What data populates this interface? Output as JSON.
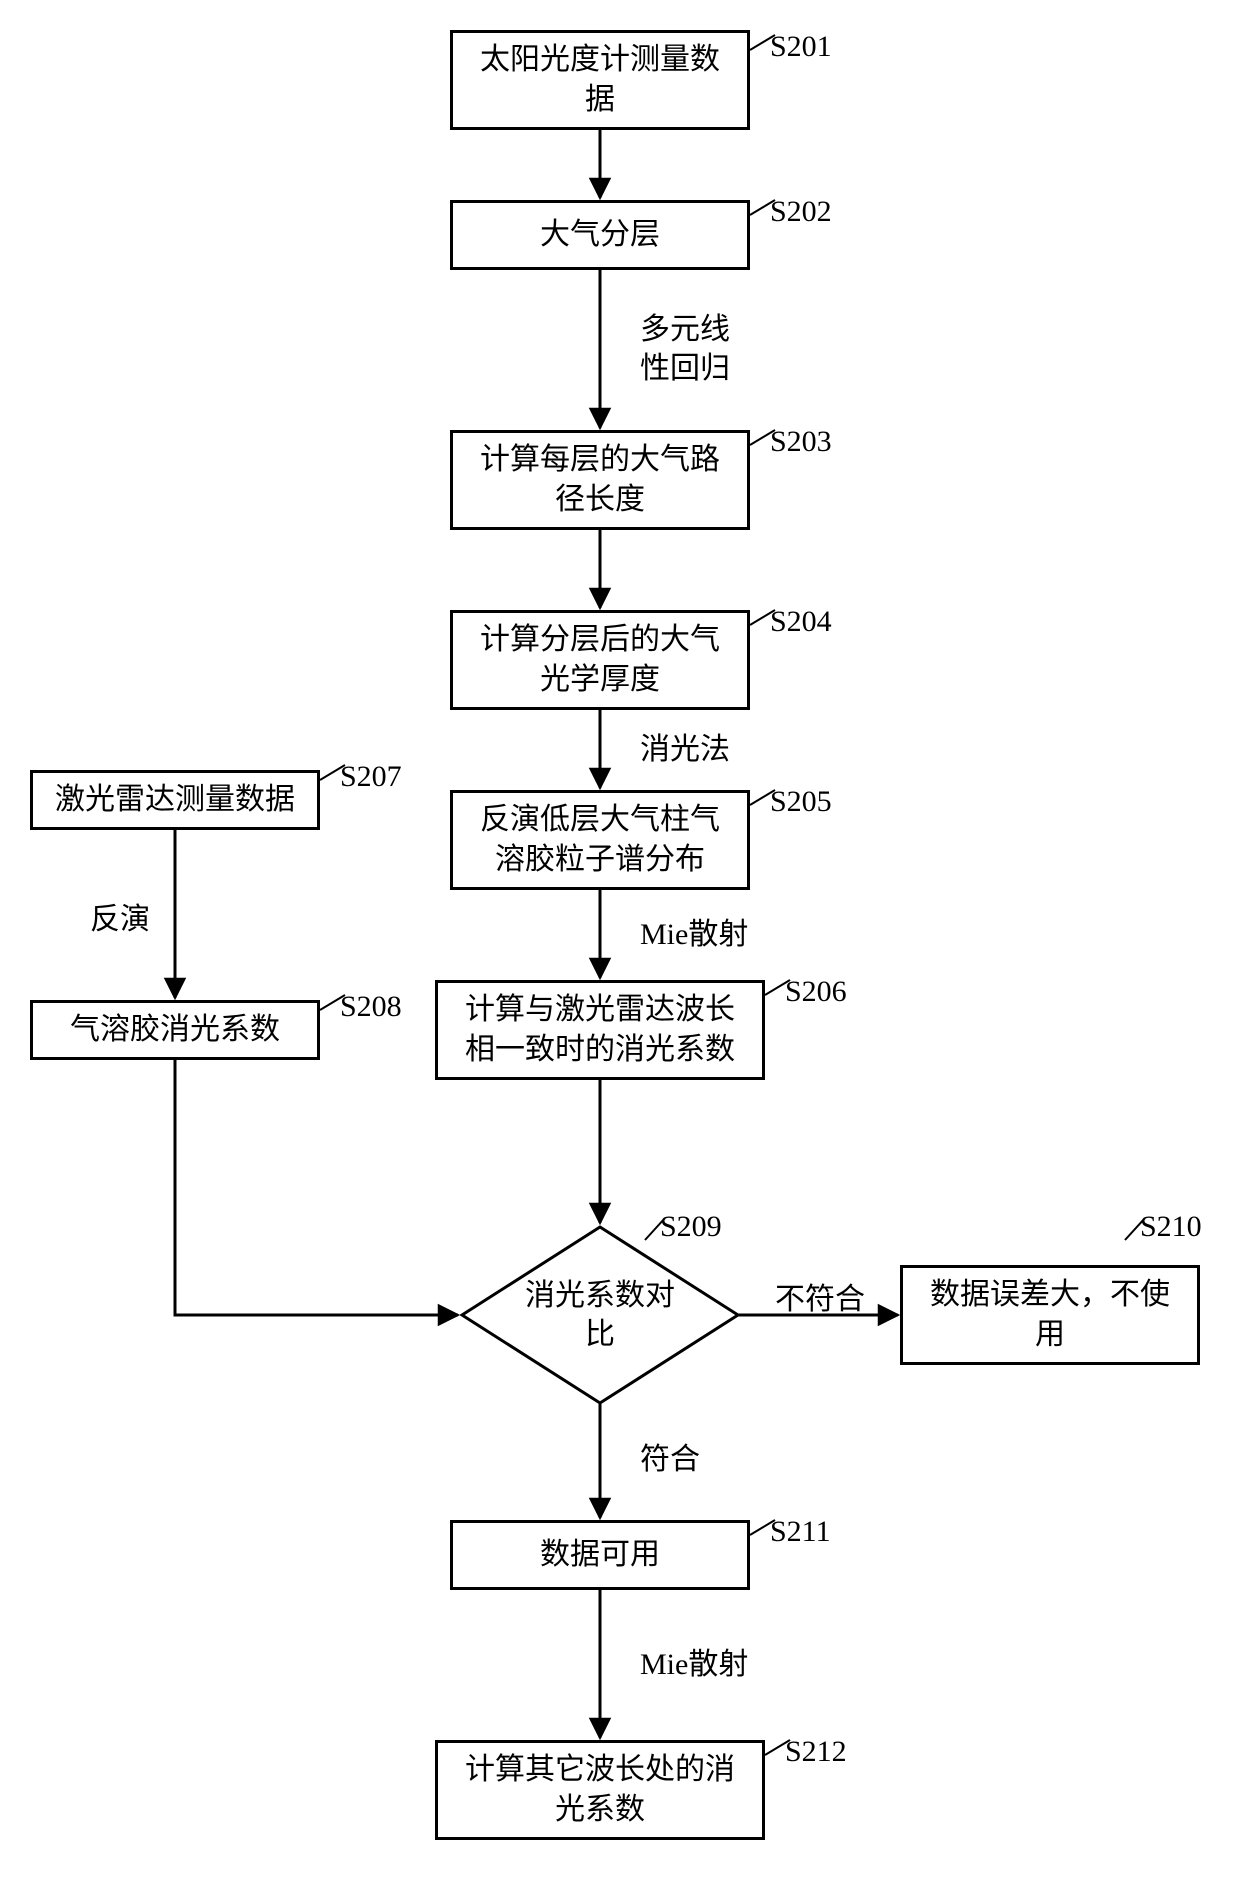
{
  "nodes": {
    "s201": {
      "text": "太阳光度计测量数\n据",
      "step": "S201"
    },
    "s202": {
      "text": "大气分层",
      "step": "S202"
    },
    "s203": {
      "text": "计算每层的大气路\n径长度",
      "step": "S203"
    },
    "s204": {
      "text": "计算分层后的大气\n光学厚度",
      "step": "S204"
    },
    "s205": {
      "text": "反演低层大气柱气\n溶胶粒子谱分布",
      "step": "S205"
    },
    "s206": {
      "text": "计算与激光雷达波长\n相一致时的消光系数",
      "step": "S206"
    },
    "s207": {
      "text": "激光雷达测量数据",
      "step": "S207"
    },
    "s208": {
      "text": "气溶胶消光系数",
      "step": "S208"
    },
    "s209": {
      "text": "消光系数对\n比",
      "step": "S209"
    },
    "s210": {
      "text": "数据误差大，不使\n用",
      "step": "S210"
    },
    "s211": {
      "text": "数据可用",
      "step": "S211"
    },
    "s212": {
      "text": "计算其它波长处的消\n光系数",
      "step": "S212"
    }
  },
  "edgeLabels": {
    "e_202_203": "多元线\n性回归",
    "e_204_205": "消光法",
    "e_205_206": "Mie散射",
    "e_207_208": "反演",
    "e_209_210": "不符合",
    "e_209_211": "符合",
    "e_211_212": "Mie散射"
  },
  "style": {
    "stroke": "#000000",
    "strokeWidth": 3,
    "arrowSize": 14,
    "background": "#ffffff",
    "fontSize": 30
  }
}
